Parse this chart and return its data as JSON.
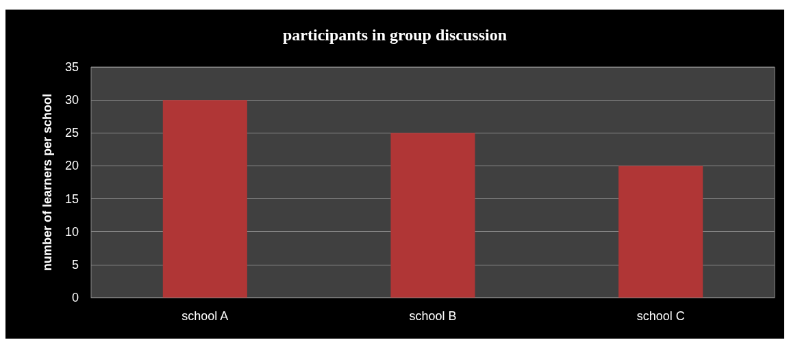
{
  "chart_data": {
    "type": "bar",
    "title": "participants in group discussion",
    "ylabel": "number of learners per school",
    "categories": [
      "school A",
      "school B",
      "school C"
    ],
    "values": [
      30,
      25,
      20
    ],
    "color": "#b03636",
    "ylim": [
      0,
      35
    ],
    "yticks": [
      0,
      5,
      10,
      15,
      20,
      25,
      30,
      35
    ],
    "grid": "y"
  }
}
